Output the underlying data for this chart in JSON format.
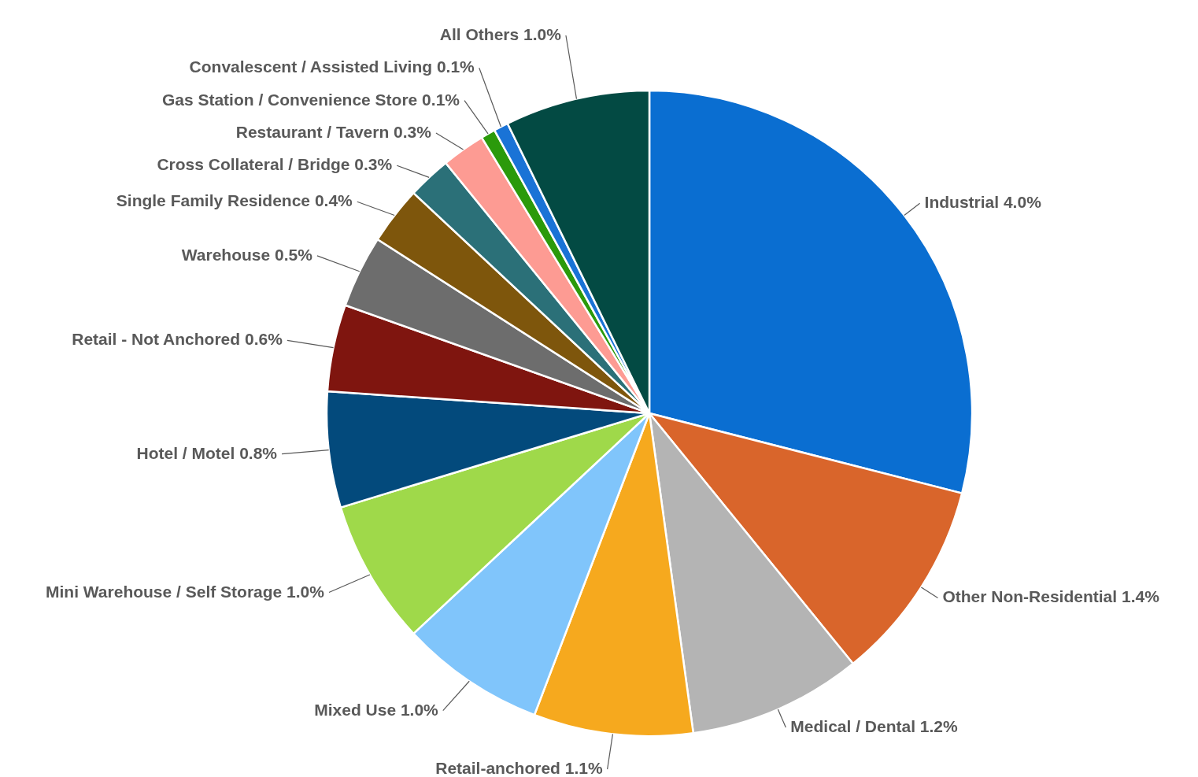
{
  "chart_data": {
    "type": "pie",
    "categories": [
      "Industrial",
      "Other Non-Residential",
      "Medical / Dental",
      "Retail-anchored",
      "Mixed Use",
      "Mini Warehouse / Self Storage",
      "Hotel / Motel",
      "Retail - Not Anchored",
      "Warehouse",
      "Single Family Residence",
      "Cross Collateral / Bridge",
      "Restaurant / Tavern",
      "Gas Station / Convenience Store",
      "Convalescent / Assisted Living",
      "All Others"
    ],
    "values": [
      4.0,
      1.4,
      1.2,
      1.1,
      1.0,
      1.0,
      0.8,
      0.6,
      0.5,
      0.4,
      0.3,
      0.3,
      0.1,
      0.1,
      1.0
    ],
    "value_labels": [
      "4.0%",
      "1.4%",
      "1.2%",
      "1.1%",
      "1.0%",
      "1.0%",
      "0.8%",
      "0.6%",
      "0.5%",
      "0.4%",
      "0.3%",
      "0.3%",
      "0.1%",
      "0.1%",
      "1.0%"
    ],
    "colors": [
      "#0a6ed1",
      "#d9652b",
      "#b4b4b4",
      "#f6a91e",
      "#80c5fb",
      "#9fd94a",
      "#034a7c",
      "#7f150f",
      "#6d6d6d",
      "#7e560c",
      "#2b7078",
      "#fd9b93",
      "#2b9a0b",
      "#1a73d6",
      "#034a43"
    ],
    "legend": false
  }
}
